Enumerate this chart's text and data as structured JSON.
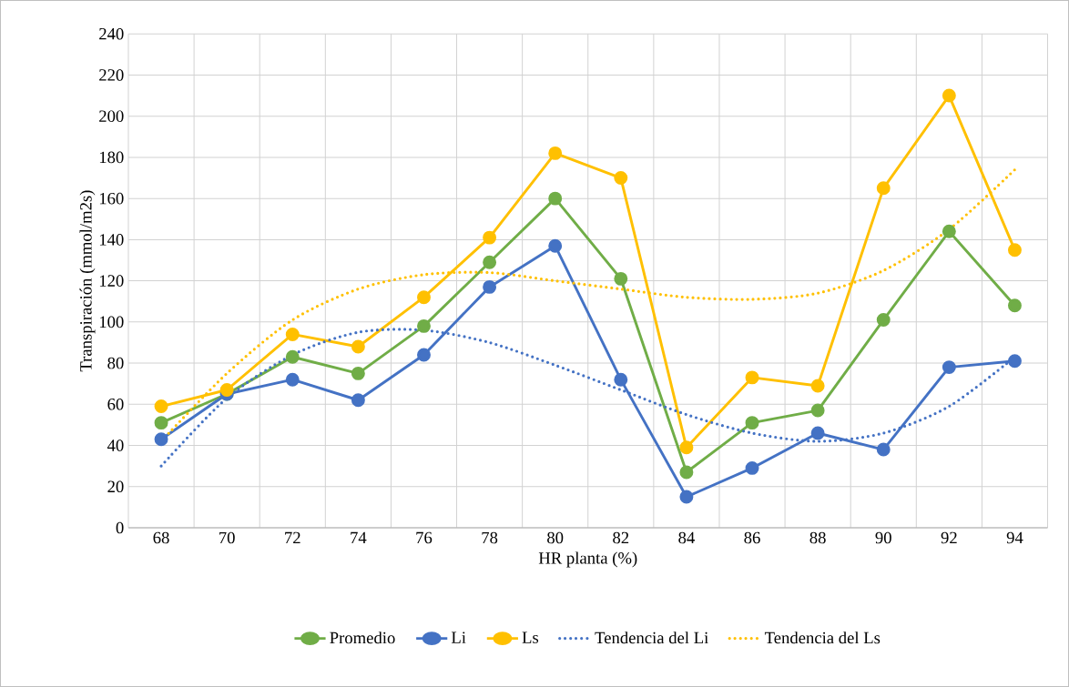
{
  "chart_data": {
    "type": "line",
    "xlabel": "HR planta (%)",
    "ylabel": "Transpiración (mmol/m2s)",
    "categories": [
      "68",
      "70",
      "72",
      "74",
      "76",
      "78",
      "80",
      "82",
      "84",
      "86",
      "88",
      "90",
      "92",
      "94"
    ],
    "series": [
      {
        "name": "Promedio",
        "color": "#70ad47",
        "marker": "circle",
        "line_style": "solid",
        "values": [
          51,
          65,
          83,
          75,
          98,
          129,
          160,
          121,
          27,
          51,
          57,
          101,
          144,
          108
        ]
      },
      {
        "name": "Li",
        "color": "#4472c4",
        "marker": "circle",
        "line_style": "solid",
        "values": [
          43,
          65,
          72,
          62,
          84,
          117,
          137,
          72,
          15,
          29,
          46,
          38,
          78,
          81
        ]
      },
      {
        "name": "Ls",
        "color": "#ffc000",
        "marker": "circle",
        "line_style": "solid",
        "values": [
          59,
          67,
          94,
          88,
          112,
          141,
          182,
          170,
          39,
          73,
          69,
          165,
          210,
          135
        ]
      },
      {
        "name": "Tendencia del Li",
        "color": "#4472c4",
        "marker": "none",
        "line_style": "dotted",
        "values": [
          30,
          63,
          84,
          95,
          96,
          90,
          79,
          67,
          55,
          46,
          42,
          46,
          59,
          83
        ]
      },
      {
        "name": "Tendencia del Ls",
        "color": "#ffc000",
        "marker": "none",
        "line_style": "dotted",
        "values": [
          42,
          75,
          101,
          116,
          123,
          124,
          120,
          116,
          112,
          111,
          114,
          125,
          145,
          174
        ]
      }
    ],
    "ylim": [
      0,
      240
    ],
    "yticks": [
      0,
      20,
      40,
      60,
      80,
      100,
      120,
      140,
      160,
      180,
      200,
      220,
      240
    ],
    "grid": true,
    "legend": "bottom"
  }
}
